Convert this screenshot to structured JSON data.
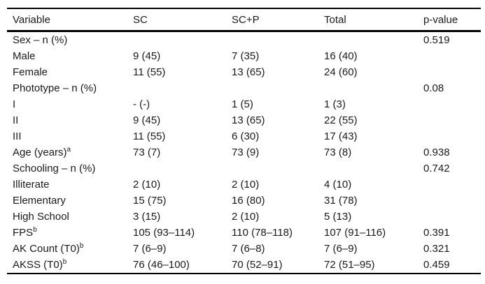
{
  "colors": {
    "text": "#1a1a1a",
    "rule": "#000000",
    "background": "#ffffff"
  },
  "table": {
    "columns": [
      {
        "key": "variable",
        "label": "Variable"
      },
      {
        "key": "sc",
        "label": "SC"
      },
      {
        "key": "scp",
        "label": "SC+P"
      },
      {
        "key": "total",
        "label": "Total"
      },
      {
        "key": "p",
        "label": "p-value"
      }
    ],
    "rows": [
      {
        "variable": "Sex – n (%)",
        "sup": "",
        "sc": "",
        "scp": "",
        "total": "",
        "p": "0.519"
      },
      {
        "variable": "Male",
        "sup": "",
        "sc": "9 (45)",
        "scp": "7 (35)",
        "total": "16 (40)",
        "p": ""
      },
      {
        "variable": "Female",
        "sup": "",
        "sc": "11 (55)",
        "scp": "13 (65)",
        "total": "24 (60)",
        "p": ""
      },
      {
        "variable": "Phototype – n (%)",
        "sup": "",
        "sc": "",
        "scp": "",
        "total": "",
        "p": "0.08"
      },
      {
        "variable": "I",
        "sup": "",
        "sc": "- (-)",
        "scp": "1 (5)",
        "total": "1 (3)",
        "p": ""
      },
      {
        "variable": "II",
        "sup": "",
        "sc": "9 (45)",
        "scp": "13 (65)",
        "total": "22 (55)",
        "p": ""
      },
      {
        "variable": "III",
        "sup": "",
        "sc": "11 (55)",
        "scp": "6 (30)",
        "total": "17 (43)",
        "p": ""
      },
      {
        "variable": "Age (years)",
        "sup": "a",
        "sc": "73 (7)",
        "scp": "73 (9)",
        "total": "73 (8)",
        "p": "0.938"
      },
      {
        "variable": "Schooling – n (%)",
        "sup": "",
        "sc": "",
        "scp": "",
        "total": "",
        "p": "0.742"
      },
      {
        "variable": "Illiterate",
        "sup": "",
        "sc": "2 (10)",
        "scp": "2 (10)",
        "total": "4 (10)",
        "p": ""
      },
      {
        "variable": "Elementary",
        "sup": "",
        "sc": "15 (75)",
        "scp": "16 (80)",
        "total": "31 (78)",
        "p": ""
      },
      {
        "variable": "High School",
        "sup": "",
        "sc": "3 (15)",
        "scp": "2 (10)",
        "total": "5 (13)",
        "p": ""
      },
      {
        "variable": "FPS",
        "sup": "b",
        "sc": "105 (93–114)",
        "scp": "110 (78–118)",
        "total": "107 (91–116)",
        "p": "0.391"
      },
      {
        "variable": "AK Count (T0)",
        "sup": "b",
        "sc": "7 (6–9)",
        "scp": "7 (6–8)",
        "total": "7 (6–9)",
        "p": "0.321"
      },
      {
        "variable": "AKSS (T0)",
        "sup": "b",
        "sc": "76 (46–100)",
        "scp": "70 (52–91)",
        "total": "72 (51–95)",
        "p": "0.459"
      }
    ]
  }
}
